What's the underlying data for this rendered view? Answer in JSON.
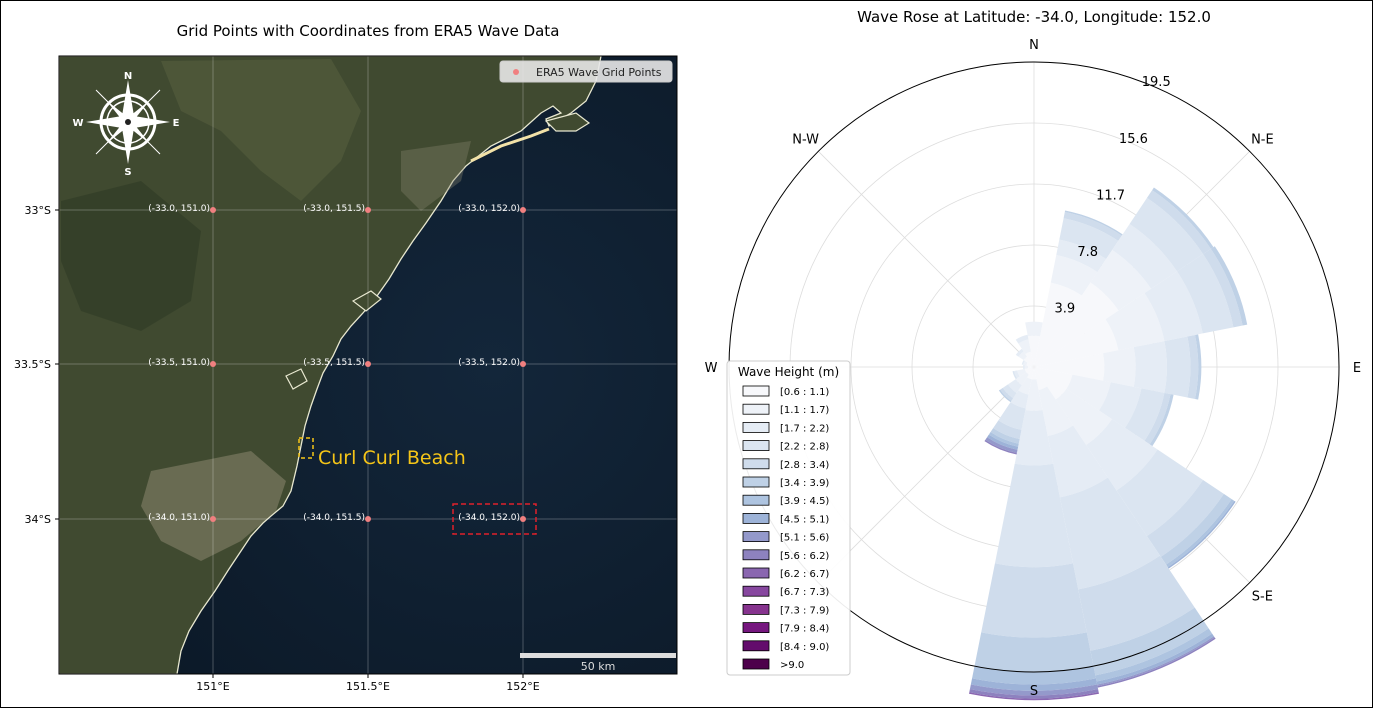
{
  "map": {
    "title": "Grid Points with Coordinates from ERA5 Wave Data",
    "legend_label": "ERA5 Wave Grid Points",
    "compass": {
      "n": "N",
      "e": "E",
      "s": "S",
      "w": "W"
    },
    "x_ticks": [
      "151°E",
      "151.5°E",
      "152°E"
    ],
    "y_ticks": [
      "33°S",
      "33.5°S",
      "34°S"
    ],
    "grid_points": [
      {
        "label": "(-33.0, 151.0)"
      },
      {
        "label": "(-33.0, 151.5)"
      },
      {
        "label": "(-33.0, 152.0)"
      },
      {
        "label": "(-33.5, 151.0)"
      },
      {
        "label": "(-33.5, 151.5)"
      },
      {
        "label": "(-33.5, 152.0)"
      },
      {
        "label": "(-34.0, 151.0)"
      },
      {
        "label": "(-34.0, 151.5)"
      },
      {
        "label": "(-34.0, 152.0)"
      }
    ],
    "highlight_label": "Curl Curl Beach",
    "scalebar_label": "50 km",
    "colors": {
      "ocean": "#0f1f2e",
      "land": "#3f4a2e",
      "point": "#f08080",
      "highlight": "#f5c518",
      "box": "#e0212b"
    }
  },
  "chart_data": {
    "type": "wind_rose",
    "title": "Wave Rose at Latitude: -34.0, Longitude: 152.0",
    "radial_ticks": [
      "3.9",
      "7.8",
      "11.7",
      "15.6",
      "19.5"
    ],
    "rmax": 19.5,
    "direction_labels": [
      "N",
      "N-E",
      "E",
      "S-E",
      "S",
      "W",
      "N-W"
    ],
    "legend_title": "Wave Height (m)",
    "bins": [
      "[0.6 : 1.1)",
      "[1.1 : 1.7)",
      "[1.7 : 2.2)",
      "[2.2 : 2.8)",
      "[2.8 : 3.4)",
      "[3.4 : 3.9)",
      "[3.9 : 4.5)",
      "[4.5 : 5.1)",
      "[5.1 : 5.6)",
      "[5.6 : 6.2)",
      "[6.2 : 6.7)",
      "[6.7 : 7.3)",
      "[7.3 : 7.9)",
      "[7.9 : 8.4)",
      "[8.4 : 9.0)",
      ">9.0"
    ],
    "bin_colors": [
      "#f7f8fb",
      "#eef2f8",
      "#e5ecf5",
      "#dbe5f1",
      "#cfdcec",
      "#bfd1e6",
      "#aec4e0",
      "#9db3d8",
      "#9499cb",
      "#8d82bf",
      "#8a66b0",
      "#87479f",
      "#86338e",
      "#76177f",
      "#630c6c",
      "#4d004b"
    ],
    "sectors": [
      {
        "direction": 0,
        "values": [
          2.0,
          0.9,
          0,
          0,
          0,
          0,
          0,
          0,
          0,
          0,
          0,
          0,
          0,
          0,
          0,
          0
        ]
      },
      {
        "direction": 22.5,
        "values": [
          5.5,
          1.8,
          1.0,
          1.4,
          0.4,
          0.1,
          0,
          0,
          0,
          0,
          0,
          0,
          0,
          0,
          0,
          0
        ]
      },
      {
        "direction": 45,
        "values": [
          6.5,
          2.5,
          2.0,
          2.0,
          0.6,
          0.2,
          0,
          0,
          0,
          0,
          0,
          0,
          0,
          0,
          0,
          0
        ]
      },
      {
        "direction": 67.5,
        "values": [
          5.5,
          3.0,
          2.5,
          2.0,
          0.6,
          0.3,
          0,
          0,
          0,
          0,
          0,
          0,
          0,
          0,
          0,
          0
        ]
      },
      {
        "direction": 90,
        "values": [
          4.5,
          2.0,
          2.0,
          1.5,
          0.5,
          0.2,
          0,
          0,
          0,
          0,
          0,
          0,
          0,
          0,
          0,
          0
        ]
      },
      {
        "direction": 112.5,
        "values": [
          2.5,
          2.5,
          2.0,
          1.5,
          0.4,
          0.2,
          0,
          0,
          0,
          0,
          0,
          0,
          0,
          0,
          0,
          0
        ]
      },
      {
        "direction": 135,
        "values": [
          2.5,
          3.5,
          3.5,
          3.5,
          1.6,
          0.6,
          0.2,
          0.1,
          0,
          0,
          0,
          0,
          0,
          0,
          0,
          0
        ]
      },
      {
        "direction": 157.5,
        "values": [
          1.5,
          3.0,
          4.0,
          6.0,
          4.0,
          1.6,
          0.4,
          0.2,
          0.1,
          0.1,
          0,
          0,
          0,
          0,
          0,
          0
        ]
      },
      {
        "direction": 180,
        "values": [
          0.8,
          2.0,
          3.5,
          6.5,
          4.5,
          2.2,
          0.8,
          0.4,
          0.3,
          0.2,
          0.1,
          0,
          0,
          0,
          0,
          0
        ]
      },
      {
        "direction": 202.5,
        "values": [
          0.8,
          1.0,
          0.9,
          1.4,
          0.6,
          0.3,
          0.2,
          0.2,
          0.2,
          0.1,
          0,
          0,
          0,
          0,
          0,
          0
        ]
      },
      {
        "direction": 225,
        "values": [
          0.6,
          0.8,
          0.6,
          0.4,
          0.2,
          0.1,
          0,
          0,
          0,
          0,
          0,
          0,
          0,
          0,
          0,
          0
        ]
      },
      {
        "direction": 247.5,
        "values": [
          0.6,
          0.5,
          0.2,
          0.1,
          0,
          0,
          0,
          0,
          0,
          0,
          0,
          0,
          0,
          0,
          0,
          0
        ]
      },
      {
        "direction": 270,
        "values": [
          0.4,
          0.2,
          0.1,
          0,
          0,
          0,
          0,
          0,
          0,
          0,
          0,
          0,
          0,
          0,
          0,
          0
        ]
      },
      {
        "direction": 292.5,
        "values": [
          0.5,
          0.2,
          0.1,
          0,
          0,
          0,
          0,
          0,
          0,
          0,
          0,
          0,
          0,
          0,
          0,
          0
        ]
      },
      {
        "direction": 315,
        "values": [
          0.8,
          0.4,
          0.2,
          0,
          0,
          0,
          0,
          0,
          0,
          0,
          0,
          0,
          0,
          0,
          0,
          0
        ]
      },
      {
        "direction": 337.5,
        "values": [
          1.0,
          0.8,
          0.3,
          0,
          0,
          0,
          0,
          0,
          0,
          0,
          0,
          0,
          0,
          0,
          0,
          0
        ]
      }
    ]
  }
}
